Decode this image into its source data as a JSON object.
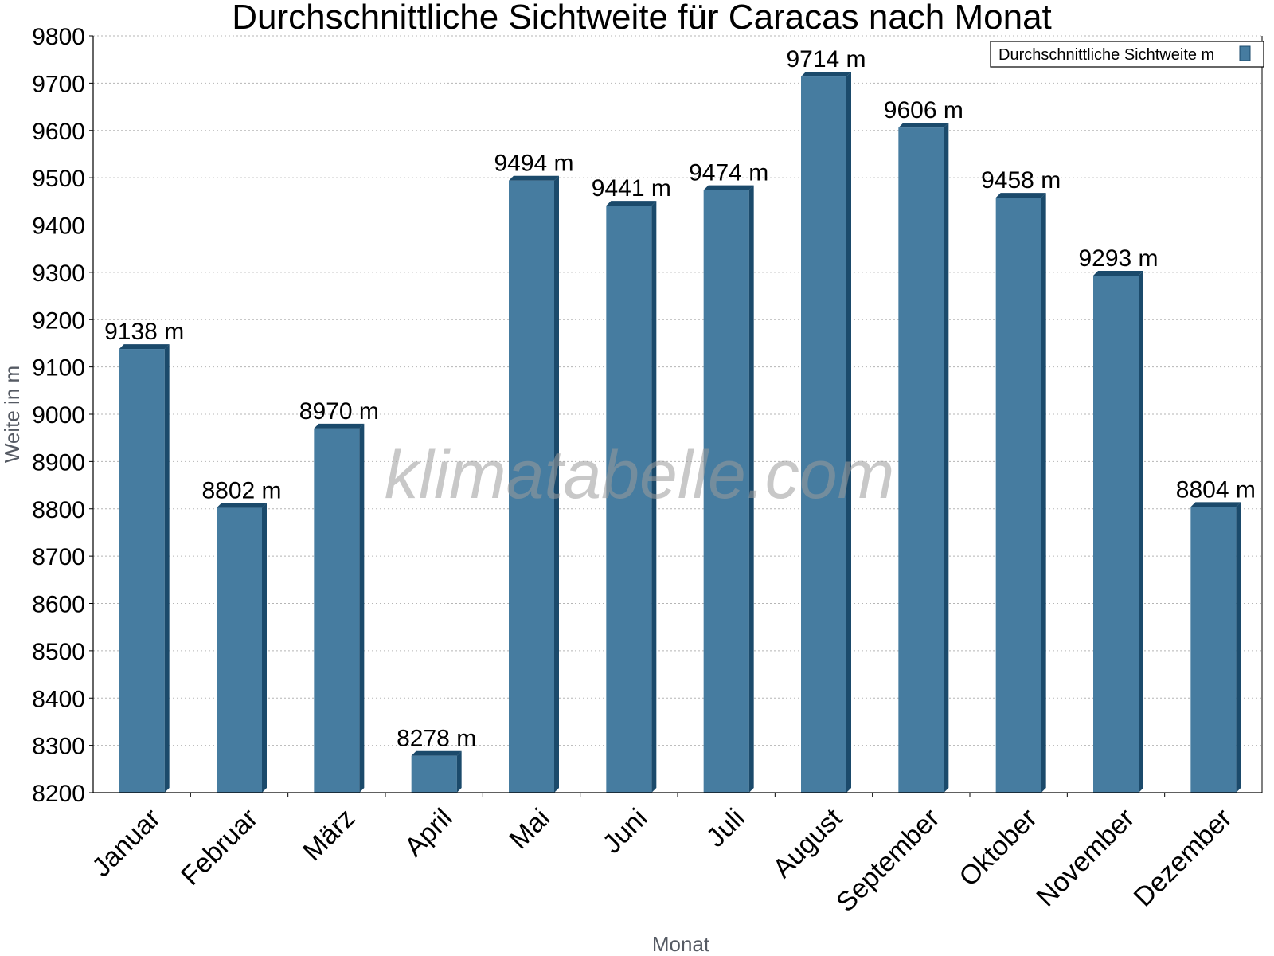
{
  "chart_data": {
    "type": "bar",
    "title": "Durchschnittliche Sichtweite für Caracas nach Monat",
    "xlabel": "Monat",
    "ylabel": "Weite in m",
    "ylim": [
      8200,
      9800
    ],
    "yticks": [
      8200,
      8300,
      8400,
      8500,
      8600,
      8700,
      8800,
      8900,
      9000,
      9100,
      9200,
      9300,
      9400,
      9500,
      9600,
      9700,
      9800
    ],
    "grid": true,
    "legend_position": "top-right",
    "unit_suffix": " m",
    "categories": [
      "Januar",
      "Februar",
      "März",
      "April",
      "Mai",
      "Juni",
      "Juli",
      "August",
      "September",
      "Oktober",
      "November",
      "Dezember"
    ],
    "series": [
      {
        "name": "Durchschnittliche Sichtweite m",
        "color": "#467ca0",
        "edge_color": "#1b4a6b",
        "values": [
          9138,
          8802,
          8970,
          8278,
          9494,
          9441,
          9474,
          9714,
          9606,
          9458,
          9293,
          8804
        ]
      }
    ]
  },
  "watermark": "klimatabelle.com"
}
